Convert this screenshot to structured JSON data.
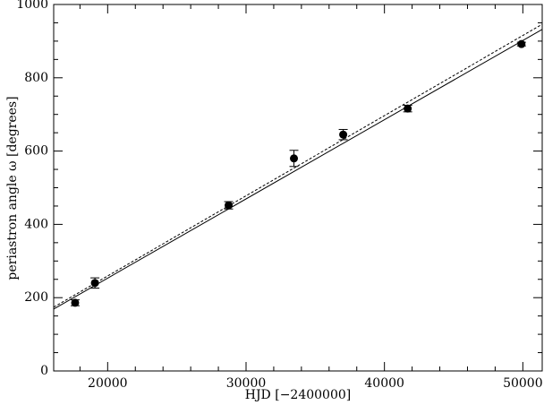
{
  "chart_data": {
    "type": "scatter",
    "xlabel": "HJD [−2400000]",
    "ylabel": "periastron angle ω [degrees]",
    "x": [
      17650,
      19080,
      28740,
      33460,
      37020,
      41680,
      49900
    ],
    "values": [
      186,
      240,
      452,
      580,
      645,
      716,
      892
    ],
    "errors": [
      8,
      14,
      10,
      22,
      14,
      9,
      5
    ],
    "color": "#000000",
    "lines": [
      {
        "style": "solid",
        "x": [
          16100,
          51400
        ],
        "values": [
          169,
          932
        ]
      },
      {
        "style": "dashed",
        "x": [
          16100,
          51400
        ],
        "values": [
          174,
          946
        ]
      }
    ],
    "xlim": [
      16100,
      51400
    ],
    "ylim": [
      0,
      1000
    ],
    "xticks": [
      20000,
      30000,
      40000,
      50000
    ],
    "yticks": [
      0,
      200,
      400,
      600,
      800,
      1000
    ],
    "xminorticks": [
      18000,
      22000,
      24000,
      26000,
      28000,
      32000,
      34000,
      36000,
      38000,
      42000,
      44000,
      46000,
      48000
    ],
    "yminorticks": [
      50,
      100,
      150,
      250,
      300,
      350,
      450,
      500,
      550,
      650,
      700,
      750,
      850,
      900,
      950
    ]
  }
}
